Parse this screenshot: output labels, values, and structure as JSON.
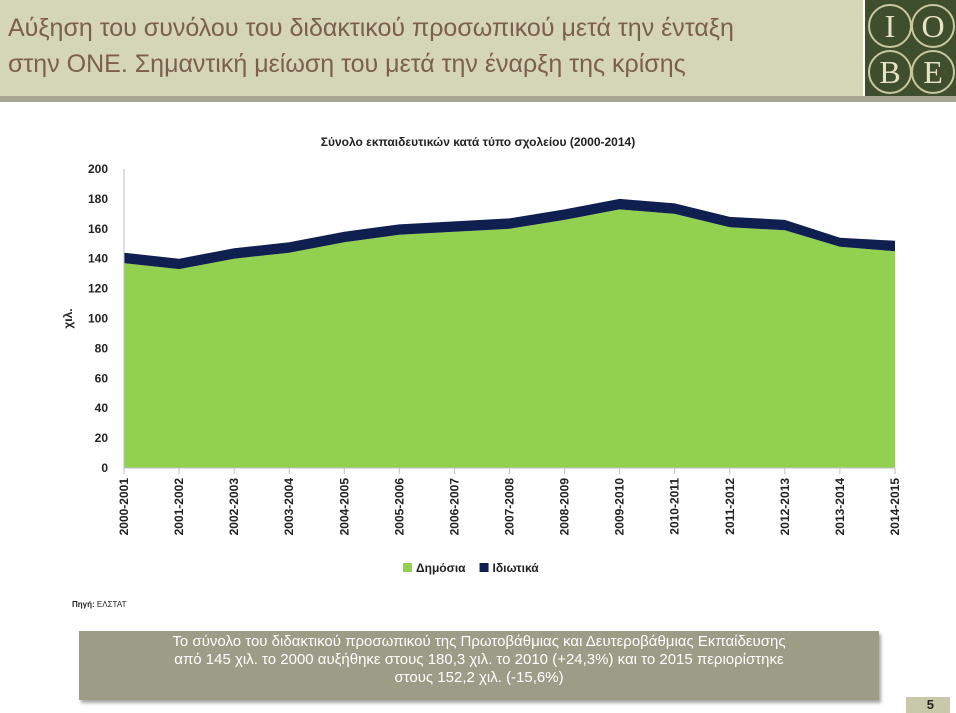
{
  "header": {
    "title_line1": "Αύξηση του συνόλου του διδακτικού προσωπικού μετά την ένταξη",
    "title_line2": "στην ΟΝΕ. Σημαντική μείωση του μετά την έναρξη της κρίσης",
    "logo_letters": [
      "I",
      "O",
      "B",
      "E"
    ]
  },
  "chart_data": {
    "type": "area",
    "title": "Σύνολο εκπαιδευτικών κατά τύπο σχολείου (2000-2014)",
    "ylabel": "χιλ.",
    "xlabel": "",
    "ylim": [
      0,
      200
    ],
    "yticks": [
      0,
      20,
      40,
      60,
      80,
      100,
      120,
      140,
      160,
      180,
      200
    ],
    "stacked": true,
    "grid": false,
    "legend_position": "bottom",
    "categories": [
      "2000-2001",
      "2001-2002",
      "2002-2003",
      "2003-2004",
      "2004-2005",
      "2005-2006",
      "2006-2007",
      "2007-2008",
      "2008-2009",
      "2009-2010",
      "2010-2011",
      "2011-2012",
      "2012-2013",
      "2013-2014",
      "2014-2015"
    ],
    "series": [
      {
        "name": "Δημόσια",
        "color": "#92d050",
        "values": [
          137,
          133,
          140,
          144,
          151,
          156,
          158,
          160,
          166,
          173,
          170,
          161,
          159,
          148,
          145
        ]
      },
      {
        "name": "Ιδιωτικά",
        "color": "#0f1f4f",
        "values": [
          7,
          7,
          7,
          7,
          7,
          7,
          7,
          7,
          7,
          7,
          7,
          7,
          7,
          6,
          7
        ]
      }
    ]
  },
  "source": {
    "label": "Πηγή:",
    "text": "ΕΛΣΤΑΤ"
  },
  "summary": {
    "line1": "Το σύνολο του διδακτικού προσωπικού της Πρωτοβάθμιας και Δευτεροβάθμιας Εκπαίδευσης",
    "line2": "από 145 χιλ. το 2000 αυξήθηκε στους 180,3 χιλ. το 2010 (+24,3%) και το 2015 περιορίστηκε",
    "line3": "στους 152,2 χιλ.  (-15,6%)"
  },
  "page_number": "5"
}
